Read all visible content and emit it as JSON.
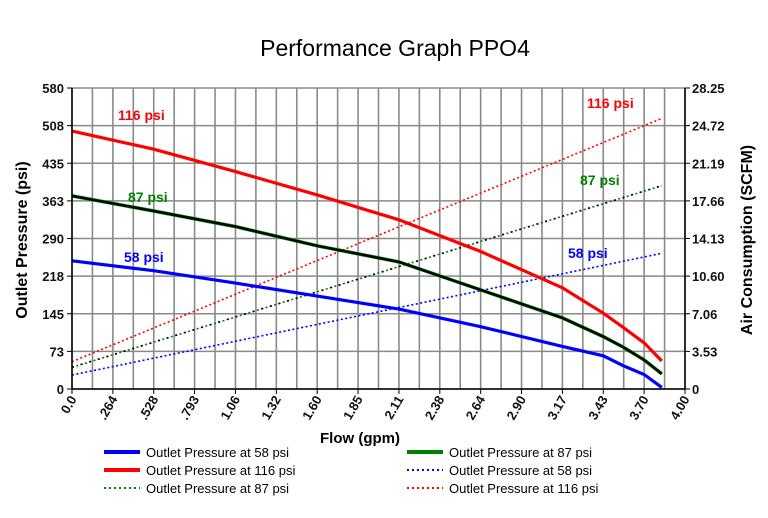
{
  "chart_data": {
    "type": "line",
    "title": "Performance Graph PPO4",
    "xlabel": "Flow (gpm)",
    "ylabel": "Outlet Pressure (psi)",
    "y2label": "Air Consumption (SCFM)",
    "x_ticks": [
      "0.0",
      ".264",
      ".528",
      ".793",
      "1.06",
      "1.32",
      "1.60",
      "1.85",
      "2.11",
      "2.38",
      "2.64",
      "2.90",
      "3.17",
      "3.43",
      "3.70",
      "4.00"
    ],
    "x_tick_values": [
      0,
      0.264,
      0.528,
      0.793,
      1.06,
      1.32,
      1.6,
      1.85,
      2.11,
      2.38,
      2.64,
      2.9,
      3.17,
      3.43,
      3.7,
      4.0
    ],
    "y_ticks": [
      "0",
      "73",
      "145",
      "218",
      "290",
      "363",
      "435",
      "508",
      "580"
    ],
    "y2_ticks": [
      "0",
      "3.53",
      "7.06",
      "10.60",
      "14.13",
      "17.66",
      "21.19",
      "24.72",
      "28.25"
    ],
    "ylim": [
      0,
      580
    ],
    "y2lim": [
      0,
      28.25
    ],
    "grid": true,
    "legend_position": "bottom",
    "series": [
      {
        "name": "Outlet Pressure at 58 psi",
        "axis": "left",
        "style": "solid",
        "color": "#0000ff",
        "x": [
          0,
          0.528,
          1.06,
          1.6,
          2.11,
          2.64,
          3.17,
          3.43,
          3.56,
          3.7,
          3.83
        ],
        "y": [
          247,
          228,
          204,
          179,
          154,
          120,
          82,
          64,
          45,
          28,
          3
        ]
      },
      {
        "name": "Outlet Pressure at 87 psi",
        "axis": "left",
        "style": "solid",
        "color": "#008000",
        "x": [
          0,
          0.528,
          1.06,
          1.6,
          2.11,
          2.64,
          3.17,
          3.43,
          3.56,
          3.7,
          3.83
        ],
        "y": [
          372,
          343,
          313,
          276,
          245,
          191,
          137,
          101,
          81,
          56,
          29
        ]
      },
      {
        "name": "Outlet Pressure at 116 psi",
        "axis": "left",
        "style": "solid",
        "color": "#ff0000",
        "x": [
          0,
          0.528,
          1.06,
          1.6,
          2.11,
          2.64,
          3.17,
          3.43,
          3.56,
          3.7,
          3.83
        ],
        "y": [
          497,
          462,
          419,
          374,
          326,
          265,
          195,
          146,
          119,
          89,
          54
        ]
      },
      {
        "name": "Outlet Pressure at 58 psi",
        "axis": "right",
        "style": "dotted",
        "color": "#0000ff",
        "x": [
          0,
          3.83
        ],
        "y": [
          1.31,
          12.74
        ]
      },
      {
        "name": "Outlet Pressure at 87 psi",
        "axis": "right",
        "style": "dotted",
        "color": "#008000",
        "x": [
          0,
          3.83
        ],
        "y": [
          2.04,
          19.08
        ]
      },
      {
        "name": "Outlet Pressure at 116 psi",
        "axis": "right",
        "style": "dotted",
        "color": "#ff0000",
        "x": [
          0,
          3.83
        ],
        "y": [
          2.56,
          25.4
        ]
      }
    ],
    "annotations": [
      {
        "text": "116 psi",
        "color": "#ff0000"
      },
      {
        "text": "87 psi",
        "color": "#008000"
      },
      {
        "text": "58 psi",
        "color": "#0000ff"
      },
      {
        "text": "116 psi",
        "color": "#ff0000"
      },
      {
        "text": "87 psi",
        "color": "#008000"
      },
      {
        "text": "58 psi",
        "color": "#0000ff"
      }
    ]
  }
}
